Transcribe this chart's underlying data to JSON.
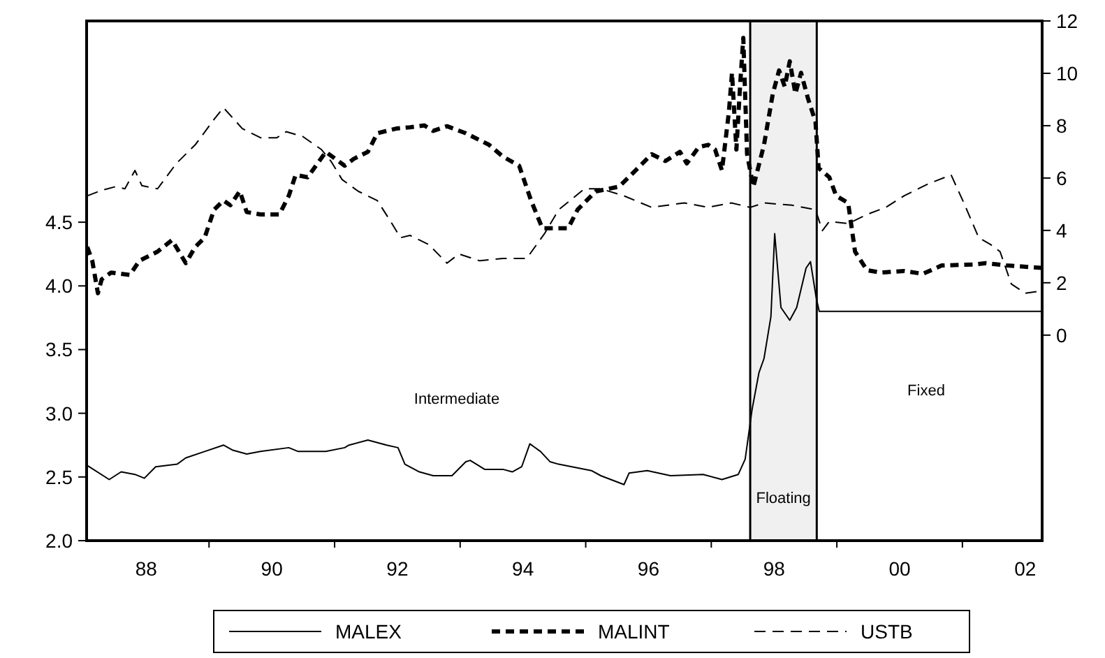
{
  "chart_data": {
    "type": "line",
    "xlim": [
      1987.05,
      2002.27
    ],
    "xticks": [
      {
        "value": 1988,
        "label": "88"
      },
      {
        "value": 1989,
        "label": null
      },
      {
        "value": 1990,
        "label": "90"
      },
      {
        "value": 1991,
        "label": null
      },
      {
        "value": 1992,
        "label": "92"
      },
      {
        "value": 1993,
        "label": null
      },
      {
        "value": 1994,
        "label": "94"
      },
      {
        "value": 1995,
        "label": null
      },
      {
        "value": 1996,
        "label": "96"
      },
      {
        "value": 1997,
        "label": null
      },
      {
        "value": 1998,
        "label": "98"
      },
      {
        "value": 1999,
        "label": null
      },
      {
        "value": 2000,
        "label": "00"
      },
      {
        "value": 2001,
        "label": null
      },
      {
        "value": 2002,
        "label": "02"
      }
    ],
    "ylim": [
      2.0,
      6.08
    ],
    "yticks": [
      {
        "value": 2.0,
        "label": "2.0"
      },
      {
        "value": 2.5,
        "label": "2.5"
      },
      {
        "value": 3.0,
        "label": "3.0"
      },
      {
        "value": 3.5,
        "label": "3.5"
      },
      {
        "value": 4.0,
        "label": "4.0"
      },
      {
        "value": 4.5,
        "label": "4.5"
      }
    ],
    "y2lim": [
      -7.85,
      12.0
    ],
    "y2ticks": [
      0,
      2,
      4,
      6,
      8,
      10,
      12
    ],
    "grid": false,
    "legend": "bottom",
    "marker": "none",
    "series": [
      {
        "name": "MALEX",
        "color": "#000000",
        "line_style": "solid",
        "x": [
          1987.06,
          1987.41,
          1987.6,
          1987.82,
          1987.97,
          1988.15,
          1988.49,
          1988.63,
          1988.93,
          1989.23,
          1989.38,
          1989.6,
          1989.82,
          1990.27,
          1990.42,
          1990.86,
          1991.16,
          1991.23,
          1991.53,
          1991.83,
          1992.01,
          1992.12,
          1992.35,
          1992.57,
          1992.87,
          1993.09,
          1993.16,
          1993.39,
          1993.68,
          1993.83,
          1993.98,
          1994.11,
          1994.28,
          1994.43,
          1994.57,
          1995.09,
          1995.24,
          1995.61,
          1995.69,
          1995.98,
          1996.35,
          1996.87,
          1997.17,
          1997.43,
          1997.54,
          1997.65,
          1997.76,
          1997.84,
          1997.95,
          1998.01,
          1998.11,
          1998.25,
          1998.36,
          1998.51,
          1998.58,
          1998.67,
          1998.72,
          2002.26
        ],
        "values": [
          2.59,
          2.48,
          2.54,
          2.52,
          2.49,
          2.58,
          2.6,
          2.65,
          2.7,
          2.75,
          2.71,
          2.68,
          2.7,
          2.73,
          2.7,
          2.7,
          2.73,
          2.75,
          2.79,
          2.75,
          2.73,
          2.6,
          2.54,
          2.51,
          2.51,
          2.62,
          2.63,
          2.56,
          2.56,
          2.54,
          2.58,
          2.76,
          2.7,
          2.62,
          2.6,
          2.55,
          2.51,
          2.44,
          2.53,
          2.55,
          2.51,
          2.52,
          2.48,
          2.52,
          2.64,
          3.03,
          3.32,
          3.43,
          3.76,
          4.41,
          3.83,
          3.73,
          3.83,
          4.14,
          4.19,
          3.91,
          3.8,
          3.8
        ]
      },
      {
        "name": "MALINT",
        "color": "#000000",
        "line_style": "dashed",
        "axis": "y2",
        "x": [
          1987.06,
          1987.14,
          1987.23,
          1987.29,
          1987.44,
          1987.74,
          1987.89,
          1988.18,
          1988.41,
          1988.63,
          1988.78,
          1988.93,
          1989.08,
          1989.23,
          1989.34,
          1989.49,
          1989.6,
          1989.82,
          1990.12,
          1990.27,
          1990.38,
          1990.57,
          1990.86,
          1991.16,
          1991.31,
          1991.53,
          1991.68,
          1991.98,
          1992.2,
          1992.43,
          1992.57,
          1992.79,
          1993.09,
          1993.46,
          1993.68,
          1993.94,
          1994.13,
          1994.31,
          1994.57,
          1994.72,
          1994.87,
          1995.16,
          1995.53,
          1995.76,
          1996.05,
          1996.27,
          1996.5,
          1996.61,
          1996.8,
          1996.95,
          1997.06,
          1997.17,
          1997.28,
          1997.33,
          1997.4,
          1997.46,
          1997.51,
          1997.57,
          1997.67,
          1997.84,
          1997.98,
          1998.08,
          1998.17,
          1998.25,
          1998.34,
          1998.43,
          1998.54,
          1998.66,
          1998.71,
          1998.88,
          1998.99,
          1999.18,
          1999.29,
          1999.48,
          1999.7,
          2000.07,
          2000.37,
          2000.67,
          2001.19,
          2001.37,
          2001.71,
          2002.26
        ],
        "values": [
          3.37,
          2.84,
          1.6,
          2.13,
          2.39,
          2.3,
          2.84,
          3.19,
          3.63,
          2.75,
          3.37,
          3.72,
          4.79,
          5.14,
          4.96,
          5.5,
          4.7,
          4.61,
          4.61,
          5.32,
          6.12,
          6.03,
          7.0,
          6.47,
          6.74,
          7.0,
          7.71,
          7.89,
          7.94,
          8.01,
          7.8,
          7.98,
          7.71,
          7.27,
          6.82,
          6.47,
          5.14,
          4.08,
          4.08,
          4.08,
          4.79,
          5.49,
          5.67,
          6.21,
          6.91,
          6.65,
          7.0,
          6.56,
          7.18,
          7.27,
          7.09,
          6.29,
          8.51,
          10.02,
          7.09,
          9.57,
          11.35,
          6.91,
          5.67,
          7.27,
          9.22,
          10.11,
          9.49,
          10.46,
          9.22,
          10.02,
          9.04,
          8.15,
          6.38,
          6.03,
          5.32,
          5.05,
          3.19,
          2.48,
          2.39,
          2.45,
          2.34,
          2.66,
          2.7,
          2.75,
          2.66,
          2.57
        ]
      },
      {
        "name": "USTB",
        "color": "#000000",
        "line_style": "dashed",
        "axis": "y2",
        "x": [
          1987.06,
          1987.29,
          1987.51,
          1987.66,
          1987.82,
          1987.93,
          1988.18,
          1988.48,
          1988.78,
          1989.08,
          1989.23,
          1989.53,
          1989.82,
          1990.08,
          1990.23,
          1990.49,
          1990.79,
          1990.94,
          1991.12,
          1991.38,
          1991.68,
          1991.87,
          1992.05,
          1992.2,
          1992.5,
          1992.79,
          1992.98,
          1993.31,
          1993.68,
          1994.06,
          1994.35,
          1994.57,
          1994.98,
          1995.24,
          1995.61,
          1996.05,
          1996.57,
          1996.95,
          1997.32,
          1997.62,
          1997.84,
          1998.29,
          1998.66,
          1998.77,
          1998.88,
          1999.18,
          1999.48,
          1999.78,
          2000.07,
          2000.44,
          2000.82,
          2001.04,
          2001.26,
          2001.45,
          2001.6,
          2001.78,
          2002.0,
          2002.26
        ],
        "values": [
          5.32,
          5.53,
          5.67,
          5.59,
          6.29,
          5.71,
          5.59,
          6.56,
          7.27,
          8.24,
          8.69,
          7.89,
          7.54,
          7.54,
          7.77,
          7.59,
          7.09,
          6.65,
          5.94,
          5.49,
          5.14,
          4.43,
          3.72,
          3.81,
          3.46,
          2.75,
          3.1,
          2.84,
          2.93,
          2.93,
          3.9,
          4.79,
          5.59,
          5.59,
          5.32,
          4.88,
          5.05,
          4.88,
          5.05,
          4.88,
          5.05,
          4.96,
          4.79,
          3.99,
          4.34,
          4.26,
          4.61,
          4.88,
          5.32,
          5.76,
          6.12,
          4.96,
          3.72,
          3.46,
          3.19,
          1.95,
          1.6,
          1.69
        ]
      }
    ],
    "bands": [
      {
        "axis": "x",
        "from": 1997.62,
        "to": 1998.68,
        "label": "Floating",
        "color": "#f0f0f0"
      }
    ],
    "ref_lines": [
      {
        "axis": "x",
        "value": 1997.62,
        "color": "#000000"
      },
      {
        "axis": "x",
        "value": 1998.68,
        "color": "#000000"
      }
    ],
    "annotations": [
      "Intermediate",
      "Fixed"
    ]
  }
}
